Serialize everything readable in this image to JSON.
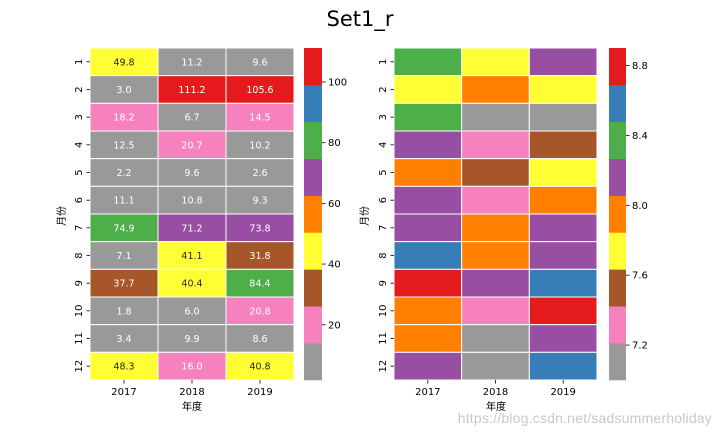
{
  "title": "Set1_r",
  "watermark": "https://blog.csdn.net/sadsummerholiday",
  "palette": {
    "Set1_r": [
      "#999999",
      "#f781bf",
      "#a65628",
      "#ffff33",
      "#ff7f00",
      "#984ea3",
      "#4daf4a",
      "#377eb8",
      "#e41a1c"
    ],
    "light_text": "#ffffff",
    "dark_text": "#262626"
  },
  "chart_data": [
    {
      "type": "heatmap",
      "name": "left",
      "annotated": true,
      "columns": [
        "2017",
        "2018",
        "2019"
      ],
      "rows": [
        "1",
        "2",
        "3",
        "4",
        "5",
        "6",
        "7",
        "8",
        "9",
        "10",
        "11",
        "12"
      ],
      "values": [
        [
          49.8,
          11.2,
          9.6
        ],
        [
          3.0,
          111.2,
          105.6
        ],
        [
          18.2,
          6.7,
          14.5
        ],
        [
          12.5,
          20.7,
          10.2
        ],
        [
          2.2,
          9.6,
          2.6
        ],
        [
          11.1,
          10.8,
          9.3
        ],
        [
          74.9,
          71.2,
          73.8
        ],
        [
          7.1,
          41.1,
          31.8
        ],
        [
          37.7,
          40.4,
          84.4
        ],
        [
          1.8,
          6.0,
          20.8
        ],
        [
          3.4,
          9.9,
          8.6
        ],
        [
          48.3,
          16.0,
          40.8
        ]
      ],
      "labels": [
        [
          "49.8",
          "11.2",
          "9.6"
        ],
        [
          "3.0",
          "111.2",
          "105.6"
        ],
        [
          "18.2",
          "6.7",
          "14.5"
        ],
        [
          "12.5",
          "20.7",
          "10.2"
        ],
        [
          "2.2",
          "9.6",
          "2.6"
        ],
        [
          "11.1",
          "10.8",
          "9.3"
        ],
        [
          "74.9",
          "71.2",
          "73.8"
        ],
        [
          "7.1",
          "41.1",
          "31.8"
        ],
        [
          "37.7",
          "40.4",
          "84.4"
        ],
        [
          "1.8",
          "6.0",
          "20.8"
        ],
        [
          "3.4",
          "9.9",
          "8.6"
        ],
        [
          "48.3",
          "16.0",
          "40.8"
        ]
      ],
      "vmin": 1.8,
      "vmax": 111.2,
      "xlabel": "年度",
      "ylabel": "月份",
      "colorbar_ticks": [
        20,
        40,
        60,
        80,
        100
      ],
      "colorbar_tick_labels": [
        "20",
        "40",
        "60",
        "80",
        "100"
      ]
    },
    {
      "type": "heatmap",
      "name": "right",
      "annotated": false,
      "columns": [
        "2017",
        "2018",
        "2019"
      ],
      "rows": [
        "1",
        "2",
        "3",
        "4",
        "5",
        "6",
        "7",
        "8",
        "9",
        "10",
        "11",
        "12"
      ],
      "values": [
        [
          8.4,
          7.7,
          8.1
        ],
        [
          7.7,
          7.95,
          7.7
        ],
        [
          8.4,
          7.05,
          7.05
        ],
        [
          8.1,
          7.3,
          7.5
        ],
        [
          7.95,
          7.5,
          7.7
        ],
        [
          8.1,
          7.3,
          7.95
        ],
        [
          8.1,
          7.95,
          8.1
        ],
        [
          8.55,
          7.95,
          8.1
        ],
        [
          8.8,
          8.1,
          8.55
        ],
        [
          7.95,
          7.3,
          8.8
        ],
        [
          7.95,
          7.05,
          8.1
        ],
        [
          8.1,
          7.05,
          8.55
        ]
      ],
      "vmin": 7.0,
      "vmax": 8.9,
      "xlabel": "年度",
      "ylabel": "月份",
      "colorbar_ticks": [
        7.2,
        7.6,
        8.0,
        8.4,
        8.8
      ],
      "colorbar_tick_labels": [
        "7.2",
        "7.6",
        "8.0",
        "8.4",
        "8.8"
      ]
    }
  ]
}
